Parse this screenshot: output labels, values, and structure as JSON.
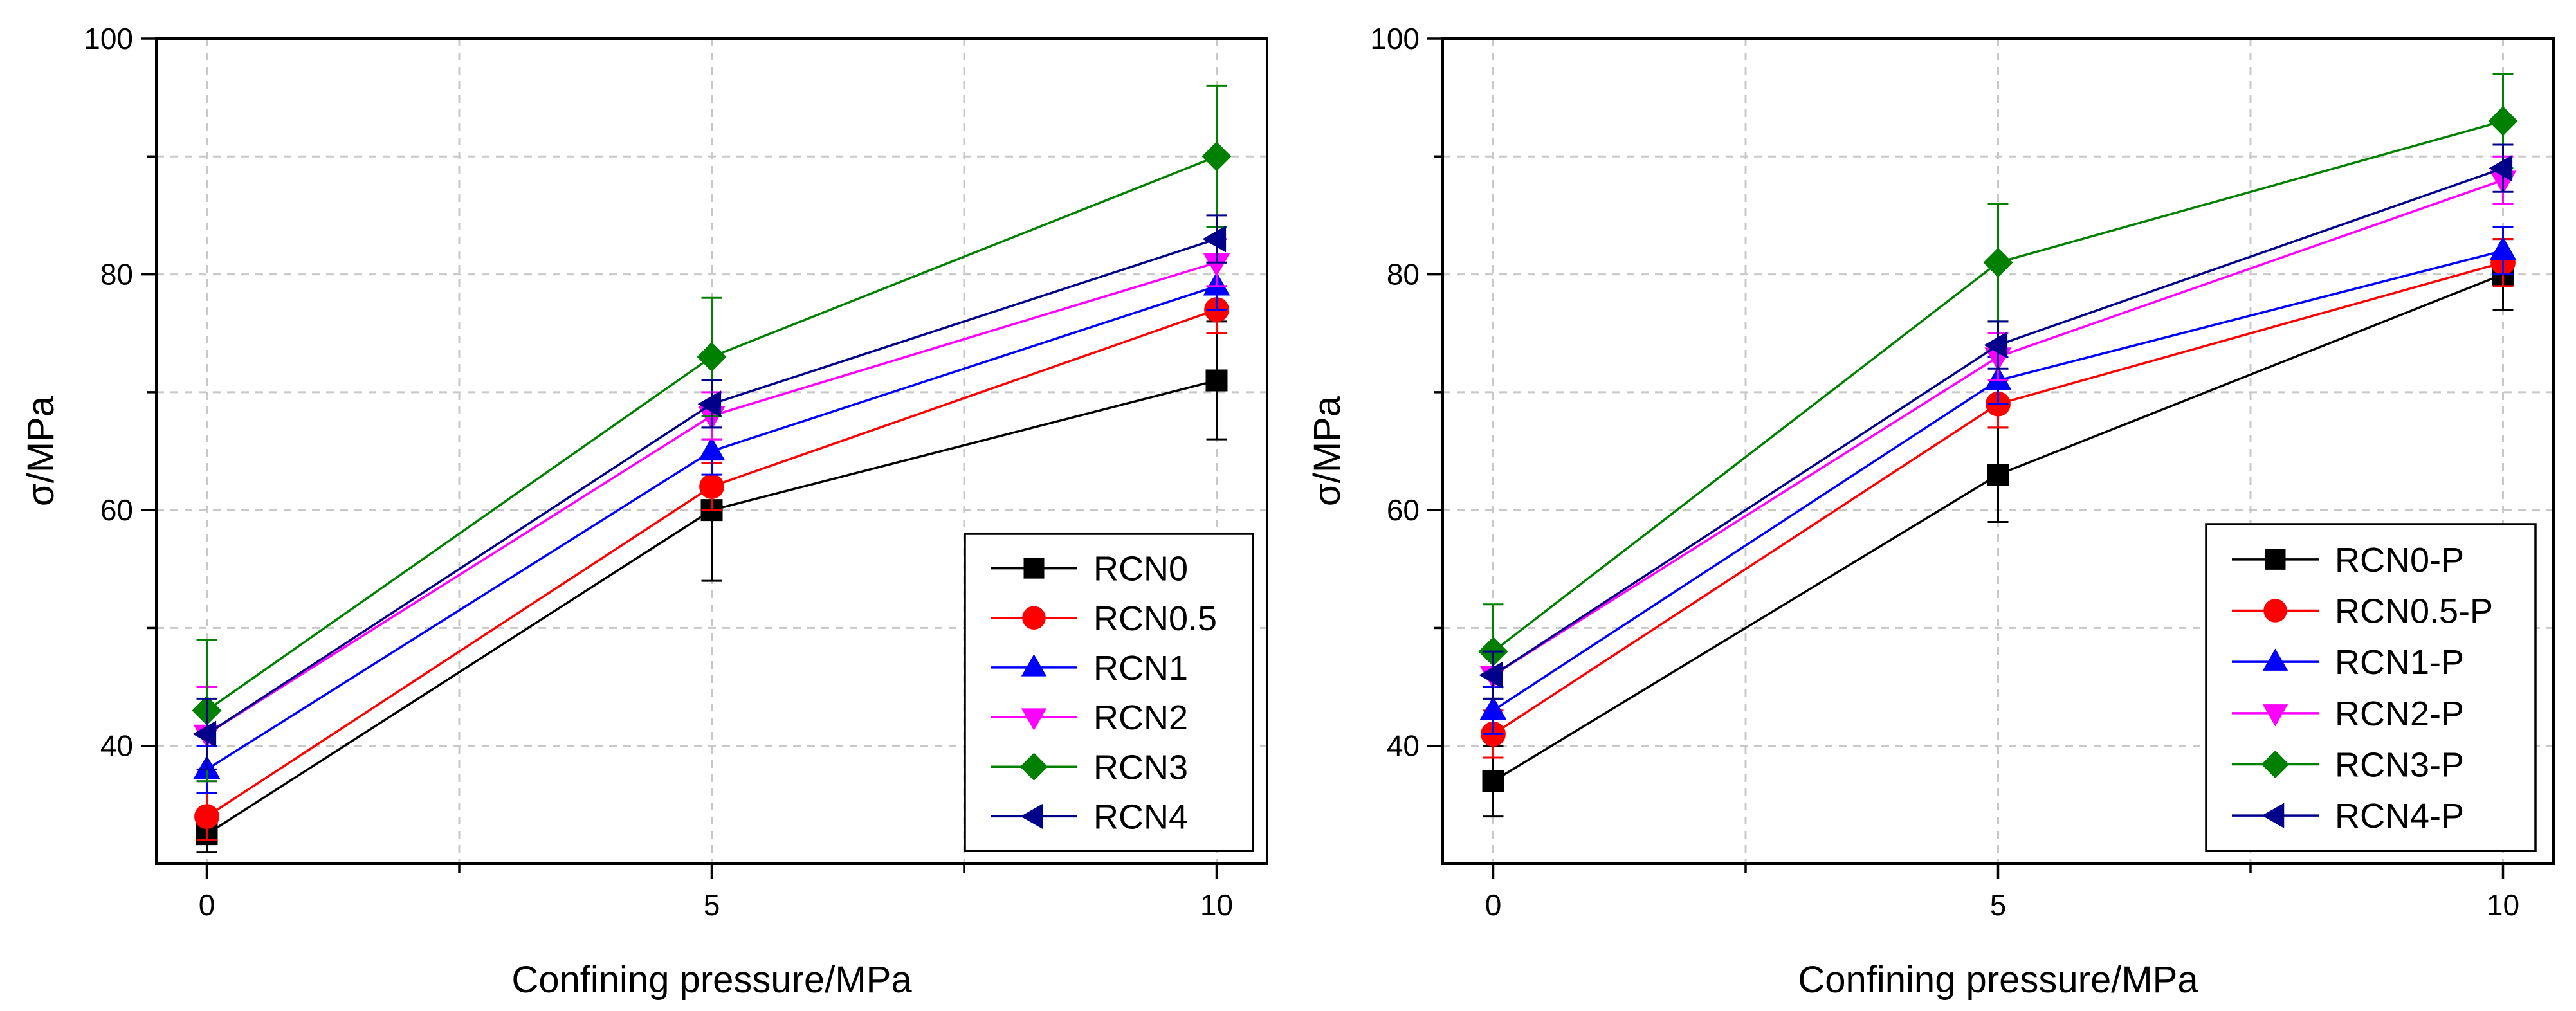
{
  "chart_data": [
    {
      "type": "line",
      "x": [
        0,
        5,
        10
      ],
      "xlabel": "Confining pressure/MPa",
      "ylabel": "σ/MPa",
      "xlim": [
        -0.5,
        10.5
      ],
      "ylim": [
        30,
        100
      ],
      "x_ticks": [
        0,
        5,
        10
      ],
      "x_tick_labels": [
        "0",
        "5",
        "10"
      ],
      "x_minor_ticks": [
        2.5,
        7.5
      ],
      "y_ticks": [
        40,
        60,
        80,
        100
      ],
      "y_tick_labels": [
        "40",
        "60",
        "80",
        "100"
      ],
      "y_minor_ticks": [
        50,
        70,
        90
      ],
      "grid": true,
      "legend_position": "bottom-right",
      "series": [
        {
          "name": "RCN0",
          "values": [
            32.5,
            60,
            71
          ],
          "errors": [
            1.5,
            6,
            5
          ],
          "color": "#000000",
          "marker": "square"
        },
        {
          "name": "RCN0.5",
          "values": [
            34,
            62,
            77
          ],
          "errors": [
            2,
            2,
            2
          ],
          "color": "#ff0000",
          "marker": "circle"
        },
        {
          "name": "RCN1",
          "values": [
            38,
            65,
            79
          ],
          "errors": [
            2,
            2,
            2
          ],
          "color": "#0000ff",
          "marker": "triangle-up"
        },
        {
          "name": "RCN2",
          "values": [
            41,
            68,
            81
          ],
          "errors": [
            4,
            2,
            2
          ],
          "color": "#ff00ff",
          "marker": "triangle-down"
        },
        {
          "name": "RCN3",
          "values": [
            43,
            73,
            90
          ],
          "errors": [
            6,
            5,
            6
          ],
          "color": "#008000",
          "marker": "diamond"
        },
        {
          "name": "RCN4",
          "values": [
            41,
            69,
            83
          ],
          "errors": [
            3,
            2,
            2
          ],
          "color": "#00008b",
          "marker": "triangle-left"
        }
      ]
    },
    {
      "type": "line",
      "x": [
        0,
        5,
        10
      ],
      "xlabel": "Confining pressure/MPa",
      "ylabel": "σ/MPa",
      "xlim": [
        -0.5,
        10.5
      ],
      "ylim": [
        30,
        100
      ],
      "x_ticks": [
        0,
        5,
        10
      ],
      "x_tick_labels": [
        "0",
        "5",
        "10"
      ],
      "x_minor_ticks": [
        2.5,
        7.5
      ],
      "y_ticks": [
        40,
        60,
        80,
        100
      ],
      "y_tick_labels": [
        "40",
        "60",
        "80",
        "100"
      ],
      "y_minor_ticks": [
        50,
        70,
        90
      ],
      "grid": true,
      "legend_position": "bottom-right",
      "series": [
        {
          "name": "RCN0-P",
          "values": [
            37,
            63,
            80
          ],
          "errors": [
            3,
            4,
            3
          ],
          "color": "#000000",
          "marker": "square"
        },
        {
          "name": "RCN0.5-P",
          "values": [
            41,
            69,
            81
          ],
          "errors": [
            2,
            2,
            2
          ],
          "color": "#ff0000",
          "marker": "circle"
        },
        {
          "name": "RCN1-P",
          "values": [
            43,
            71,
            82
          ],
          "errors": [
            2,
            2,
            2
          ],
          "color": "#0000ff",
          "marker": "triangle-up"
        },
        {
          "name": "RCN2-P",
          "values": [
            46,
            73,
            88
          ],
          "errors": [
            2,
            2,
            2
          ],
          "color": "#ff00ff",
          "marker": "triangle-down"
        },
        {
          "name": "RCN3-P",
          "values": [
            48,
            81,
            93
          ],
          "errors": [
            4,
            5,
            4
          ],
          "color": "#008000",
          "marker": "diamond"
        },
        {
          "name": "RCN4-P",
          "values": [
            46,
            74,
            89
          ],
          "errors": [
            2,
            2,
            2
          ],
          "color": "#00008b",
          "marker": "triangle-left"
        }
      ]
    }
  ]
}
